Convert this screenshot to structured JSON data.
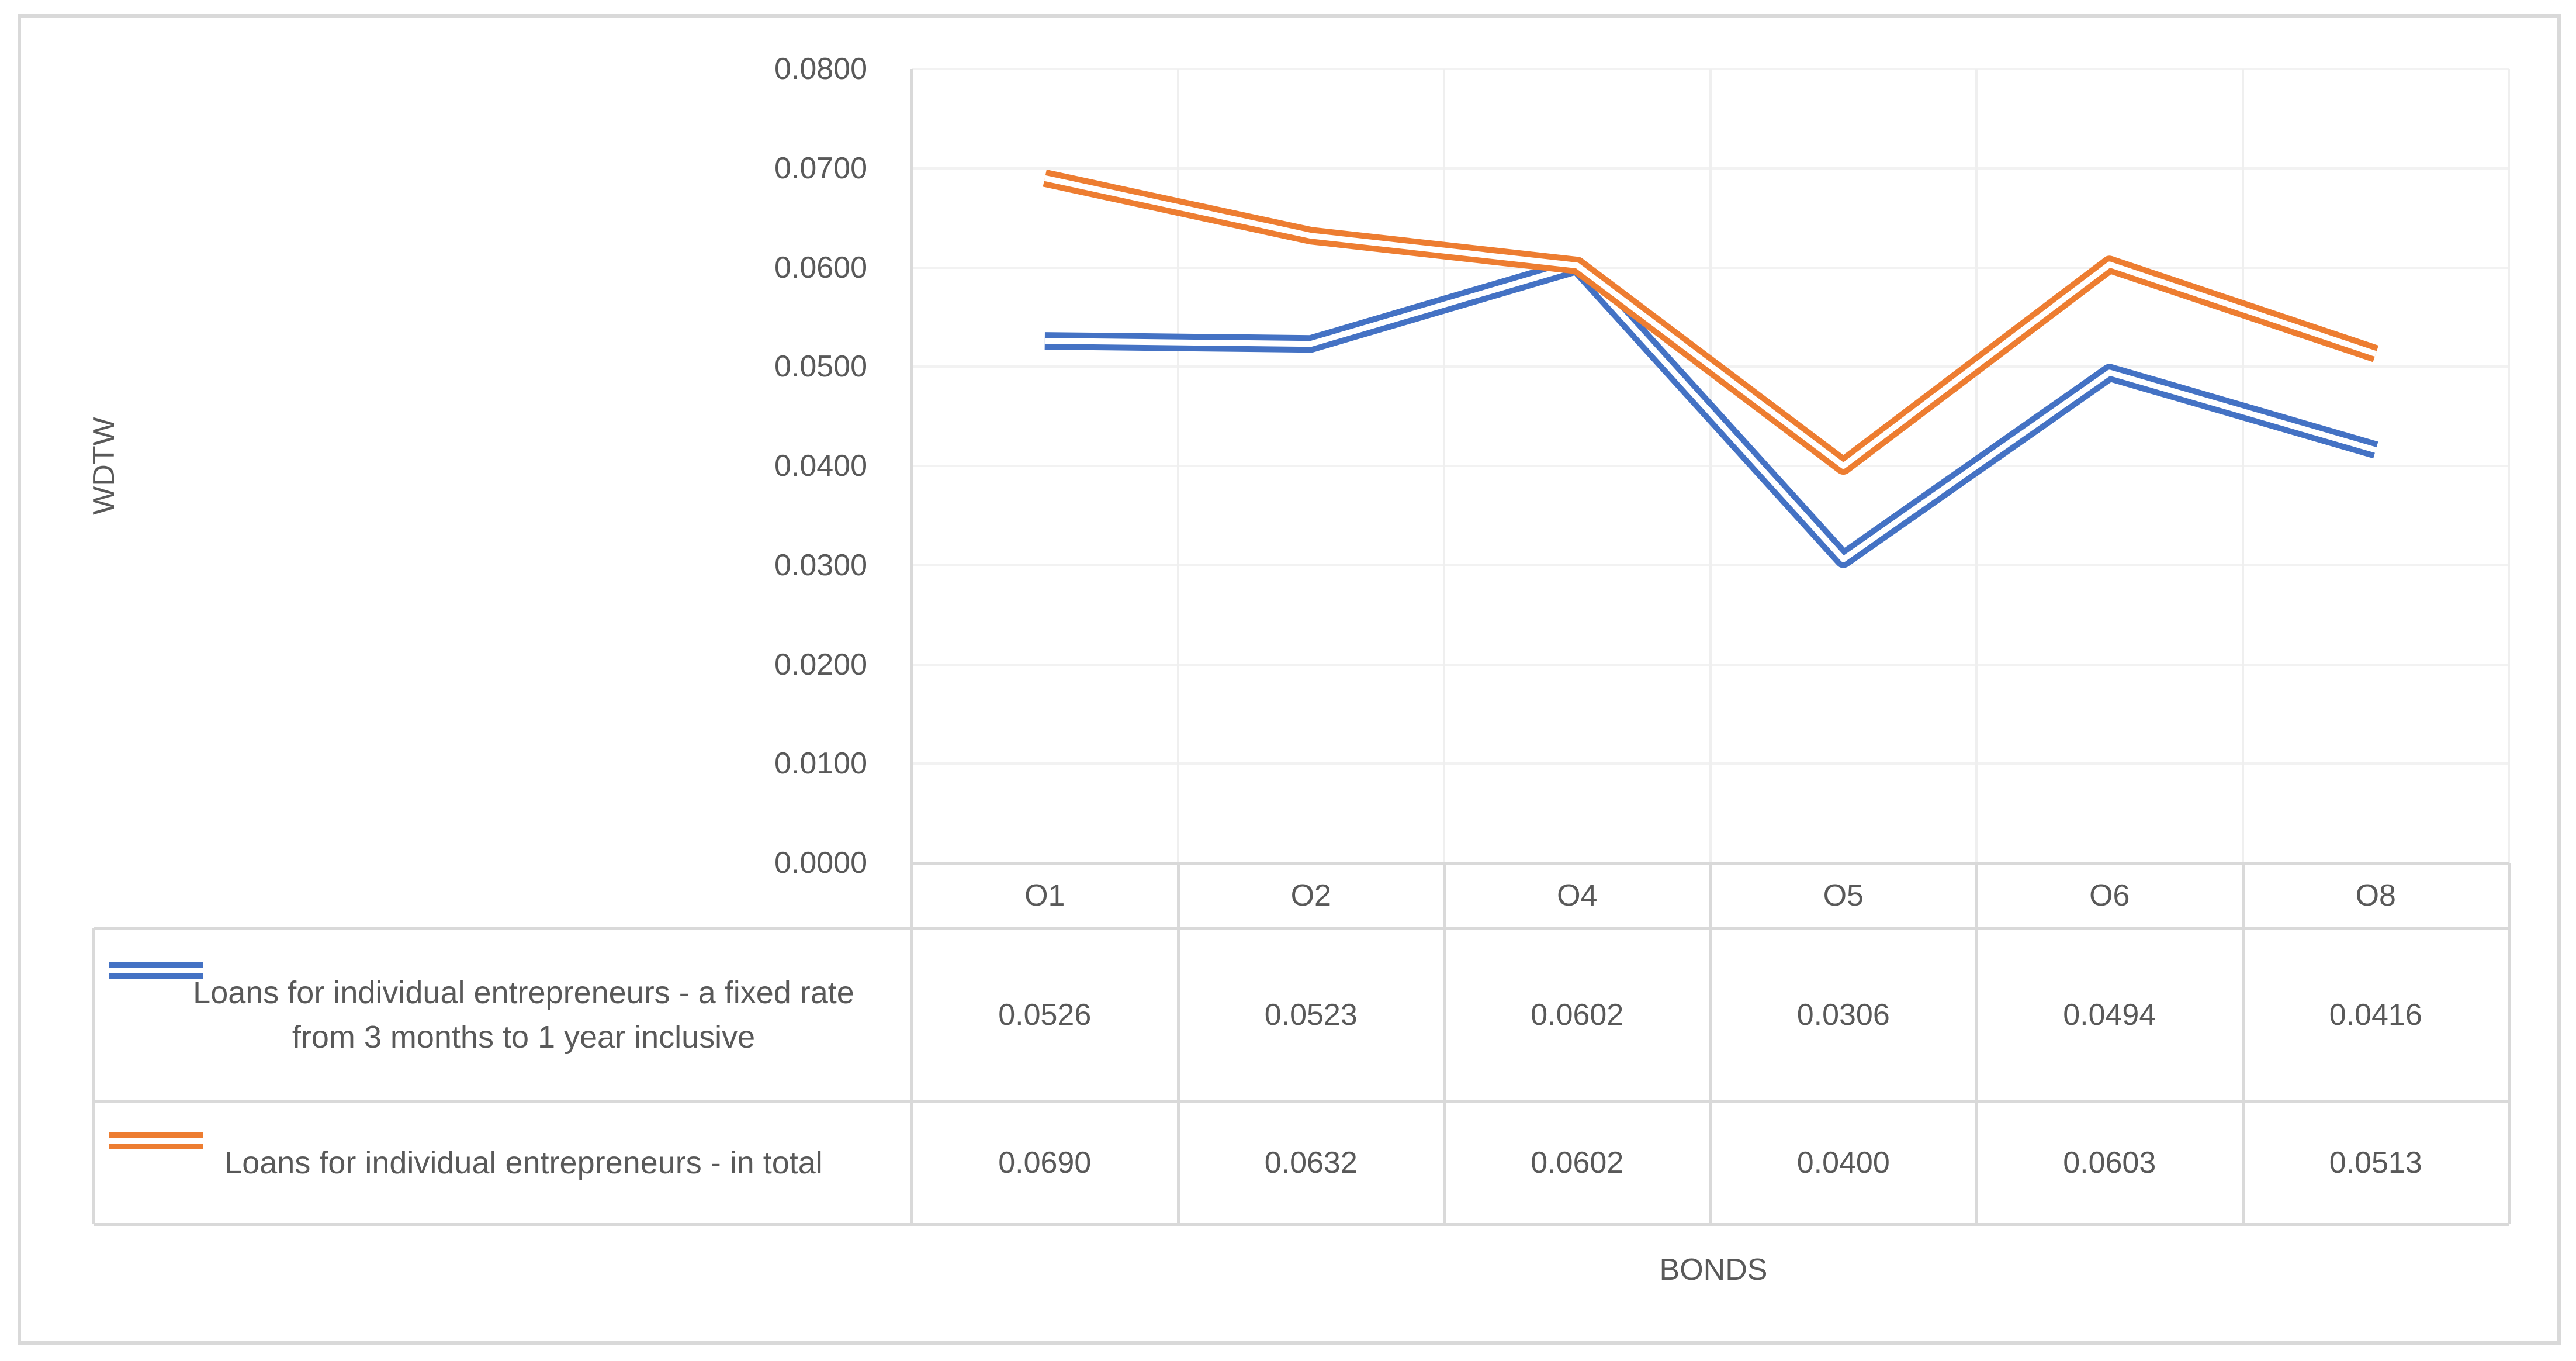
{
  "colors": {
    "series_blue": "#4472C4",
    "series_orange": "#ED7D31",
    "border": "#D9D9D9",
    "gridline": "#F2F2F2",
    "text": "#595959"
  },
  "chart_data": {
    "type": "line",
    "line_style": "double",
    "grid": true,
    "legend_position": "data-table-left",
    "title": "",
    "xlabel": "BONDS",
    "ylabel": "WDTW",
    "ylim": [
      0.0,
      0.08
    ],
    "ytick_step": 0.01,
    "ytick_labels": [
      "0.0800",
      "0.0700",
      "0.0600",
      "0.0500",
      "0.0400",
      "0.0300",
      "0.0200",
      "0.0100",
      "0.0000"
    ],
    "categories": [
      "O1",
      "O2",
      "O4",
      "O5",
      "O6",
      "O8"
    ],
    "series": [
      {
        "name": "Loans for individual entrepreneurs - a fixed rate from 3 months to 1 year inclusive",
        "color": "#4472C4",
        "values": [
          0.0526,
          0.0523,
          0.0602,
          0.0306,
          0.0494,
          0.0416
        ],
        "value_labels": [
          "0.0526",
          "0.0523",
          "0.0602",
          "0.0306",
          "0.0494",
          "0.0416"
        ]
      },
      {
        "name": "Loans for individual entrepreneurs - in total",
        "color": "#ED7D31",
        "values": [
          0.069,
          0.0632,
          0.0602,
          0.04,
          0.0603,
          0.0513
        ],
        "value_labels": [
          "0.0690",
          "0.0632",
          "0.0602",
          "0.0400",
          "0.0603",
          "0.0513"
        ]
      }
    ]
  }
}
